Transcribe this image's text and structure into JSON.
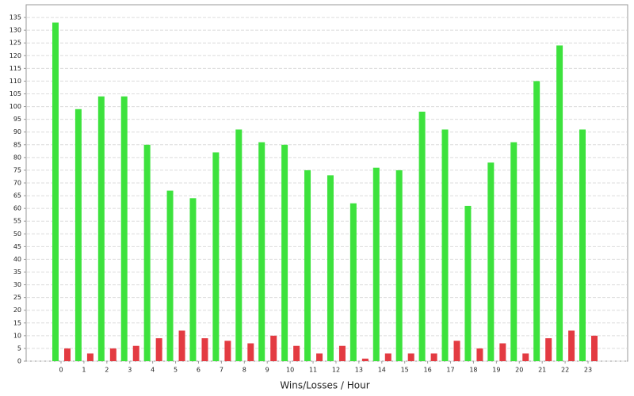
{
  "chart_data": {
    "type": "bar",
    "x_label": "Wins/Losses / Hour",
    "categories": [
      "0",
      "1",
      "2",
      "3",
      "4",
      "5",
      "6",
      "7",
      "8",
      "9",
      "10",
      "11",
      "12",
      "13",
      "14",
      "15",
      "16",
      "17",
      "18",
      "19",
      "20",
      "21",
      "22",
      "23"
    ],
    "series": [
      {
        "color": "#3de23d",
        "values": [
          133,
          99,
          104,
          104,
          85,
          67,
          64,
          82,
          91,
          86,
          85,
          75,
          73,
          62,
          76,
          75,
          98,
          91,
          61,
          78,
          86,
          110,
          124,
          91
        ]
      },
      {
        "color": "#e33b42",
        "values": [
          5,
          3,
          5,
          6,
          9,
          12,
          9,
          8,
          7,
          10,
          6,
          3,
          6,
          1,
          3,
          3,
          3,
          8,
          5,
          7,
          3,
          9,
          12,
          10
        ]
      }
    ],
    "ylim": [
      0,
      140
    ],
    "yticks": [
      0,
      5,
      10,
      15,
      20,
      25,
      30,
      35,
      40,
      45,
      50,
      55,
      60,
      65,
      70,
      75,
      80,
      85,
      90,
      95,
      100,
      105,
      110,
      115,
      120,
      125,
      130,
      135
    ],
    "grid": true
  }
}
